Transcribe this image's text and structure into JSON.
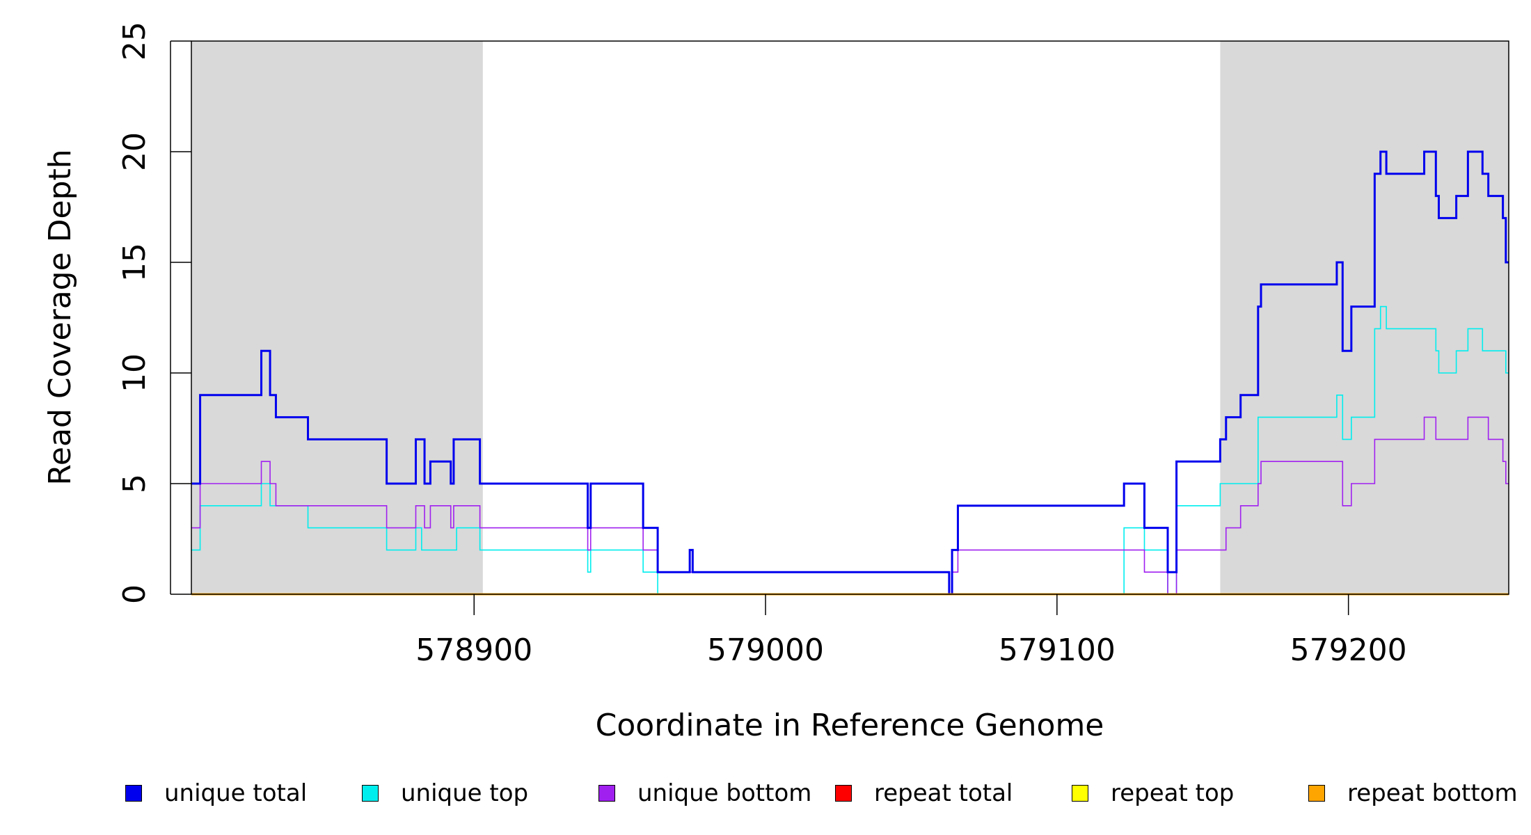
{
  "chart_data": {
    "type": "line",
    "xlabel": "Coordinate in Reference Genome",
    "ylabel": "Read Coverage Depth",
    "xlim": [
      578803,
      579255
    ],
    "ylim": [
      0,
      25
    ],
    "x_ticks": [
      578900,
      579000,
      579100,
      579200
    ],
    "x_tick_labels": [
      "578900",
      "579000",
      "579100",
      "579200"
    ],
    "y_ticks": [
      0,
      5,
      10,
      15,
      20,
      25
    ],
    "y_tick_labels": [
      "0",
      "5",
      "10",
      "15",
      "20",
      "25"
    ],
    "shaded_regions": [
      [
        578803,
        578903
      ],
      [
        579156,
        579255
      ]
    ],
    "shade_color": "#d9d9d9",
    "grid": false,
    "legend_position": "bottom",
    "series": [
      {
        "name": "unique total",
        "color": "#0000ee",
        "step": [
          [
            578803,
            5
          ],
          [
            578806,
            9
          ],
          [
            578827,
            11
          ],
          [
            578830,
            9
          ],
          [
            578832,
            8
          ],
          [
            578843,
            7
          ],
          [
            578870,
            5
          ],
          [
            578880,
            7
          ],
          [
            578883,
            5
          ],
          [
            578885,
            6
          ],
          [
            578892,
            5
          ],
          [
            578893,
            7
          ],
          [
            578902,
            5
          ],
          [
            578939,
            3
          ],
          [
            578940,
            5
          ],
          [
            578958,
            3
          ],
          [
            578963,
            1
          ],
          [
            578974,
            2
          ],
          [
            578975,
            1
          ],
          [
            579063,
            0
          ],
          [
            579064,
            2
          ],
          [
            579066,
            4
          ],
          [
            579123,
            5
          ],
          [
            579130,
            3
          ],
          [
            579138,
            1
          ],
          [
            579141,
            6
          ],
          [
            579156,
            7
          ],
          [
            579158,
            8
          ],
          [
            579163,
            9
          ],
          [
            579169,
            13
          ],
          [
            579170,
            14
          ],
          [
            579196,
            15
          ],
          [
            579198,
            11
          ],
          [
            579201,
            13
          ],
          [
            579209,
            19
          ],
          [
            579211,
            20
          ],
          [
            579213,
            19
          ],
          [
            579226,
            20
          ],
          [
            579230,
            18
          ],
          [
            579231,
            17
          ],
          [
            579237,
            18
          ],
          [
            579241,
            20
          ],
          [
            579246,
            19
          ],
          [
            579248,
            18
          ],
          [
            579253,
            17
          ],
          [
            579254,
            15
          ]
        ]
      },
      {
        "name": "unique top",
        "color": "#00eeee",
        "step": [
          [
            578803,
            2
          ],
          [
            578806,
            4
          ],
          [
            578827,
            5
          ],
          [
            578830,
            4
          ],
          [
            578843,
            3
          ],
          [
            578870,
            2
          ],
          [
            578880,
            3
          ],
          [
            578882,
            2
          ],
          [
            578885,
            2
          ],
          [
            578894,
            3
          ],
          [
            578902,
            2
          ],
          [
            578939,
            1
          ],
          [
            578940,
            2
          ],
          [
            578958,
            1
          ],
          [
            578963,
            0
          ],
          [
            579123,
            3
          ],
          [
            579130,
            2
          ],
          [
            579138,
            0
          ],
          [
            579141,
            4
          ],
          [
            579156,
            5
          ],
          [
            579169,
            8
          ],
          [
            579196,
            9
          ],
          [
            579198,
            7
          ],
          [
            579201,
            8
          ],
          [
            579209,
            12
          ],
          [
            579211,
            13
          ],
          [
            579213,
            12
          ],
          [
            579230,
            11
          ],
          [
            579231,
            10
          ],
          [
            579237,
            11
          ],
          [
            579241,
            12
          ],
          [
            579246,
            11
          ],
          [
            579254,
            10
          ]
        ]
      },
      {
        "name": "unique bottom",
        "color": "#a020f0",
        "step": [
          [
            578803,
            3
          ],
          [
            578806,
            5
          ],
          [
            578827,
            6
          ],
          [
            578830,
            5
          ],
          [
            578832,
            4
          ],
          [
            578870,
            3
          ],
          [
            578880,
            4
          ],
          [
            578883,
            3
          ],
          [
            578885,
            4
          ],
          [
            578892,
            3
          ],
          [
            578893,
            4
          ],
          [
            578902,
            3
          ],
          [
            578939,
            2
          ],
          [
            578940,
            3
          ],
          [
            578958,
            2
          ],
          [
            578963,
            1
          ],
          [
            579063,
            0
          ],
          [
            579064,
            1
          ],
          [
            579066,
            2
          ],
          [
            579130,
            1
          ],
          [
            579138,
            0
          ],
          [
            579141,
            2
          ],
          [
            579158,
            3
          ],
          [
            579163,
            4
          ],
          [
            579169,
            5
          ],
          [
            579170,
            6
          ],
          [
            579198,
            4
          ],
          [
            579201,
            5
          ],
          [
            579209,
            7
          ],
          [
            579226,
            8
          ],
          [
            579230,
            7
          ],
          [
            579241,
            8
          ],
          [
            579248,
            7
          ],
          [
            579253,
            6
          ],
          [
            579254,
            5
          ]
        ]
      },
      {
        "name": "repeat total",
        "color": "#ff0000",
        "step": [
          [
            578803,
            0
          ]
        ]
      },
      {
        "name": "repeat top",
        "color": "#ffff00",
        "step": [
          [
            578803,
            0
          ]
        ]
      },
      {
        "name": "repeat bottom",
        "color": "#ffa500",
        "step": [
          [
            578803,
            0
          ]
        ]
      }
    ]
  }
}
